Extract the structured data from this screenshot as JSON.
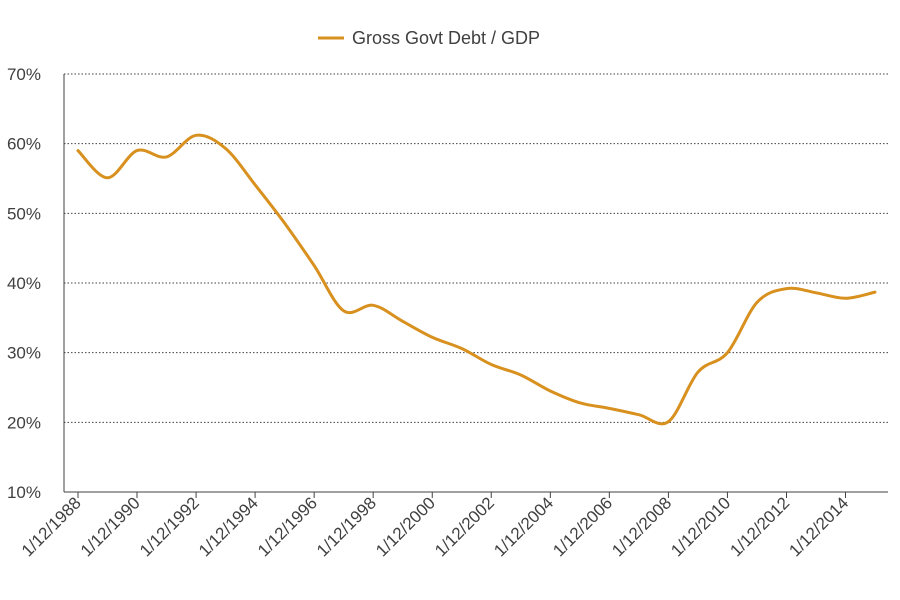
{
  "chart_data": {
    "type": "line",
    "title": "",
    "xlabel": "",
    "ylabel": "",
    "legend_position": "top-center",
    "grid": "horizontal-dotted",
    "ylim": [
      0.1,
      0.7
    ],
    "y_ticks": [
      0.1,
      0.2,
      0.3,
      0.4,
      0.5,
      0.6,
      0.7
    ],
    "y_tick_labels": [
      "10%",
      "20%",
      "30%",
      "40%",
      "50%",
      "60%",
      "70%"
    ],
    "x_tick_labels": [
      "1/12/1988",
      "1/12/1990",
      "1/12/1992",
      "1/12/1994",
      "1/12/1996",
      "1/12/1998",
      "1/12/2000",
      "1/12/2002",
      "1/12/2004",
      "1/12/2006",
      "1/12/2008",
      "1/12/2010",
      "1/12/2012",
      "1/12/2014"
    ],
    "series": [
      {
        "name": "Gross Govt Debt / GDP",
        "color": "#D8901E",
        "x": [
          "1/12/1988",
          "1/12/1989",
          "1/12/1990",
          "1/12/1991",
          "1/12/1992",
          "1/12/1993",
          "1/12/1994",
          "1/12/1995",
          "1/12/1996",
          "1/12/1997",
          "1/12/1998",
          "1/12/1999",
          "1/12/2000",
          "1/12/2001",
          "1/12/2002",
          "1/12/2003",
          "1/12/2004",
          "1/12/2005",
          "1/12/2006",
          "1/12/2007",
          "1/12/2008",
          "1/12/2009",
          "1/12/2010",
          "1/12/2011",
          "1/12/2012",
          "1/12/2013",
          "1/12/2014",
          "1/12/2015"
        ],
        "values": [
          0.59,
          0.551,
          0.59,
          0.581,
          0.612,
          0.593,
          0.541,
          0.486,
          0.425,
          0.36,
          0.368,
          0.345,
          0.322,
          0.306,
          0.283,
          0.268,
          0.245,
          0.228,
          0.22,
          0.211,
          0.201,
          0.272,
          0.3,
          0.372,
          0.392,
          0.386,
          0.378,
          0.387
        ]
      }
    ]
  }
}
